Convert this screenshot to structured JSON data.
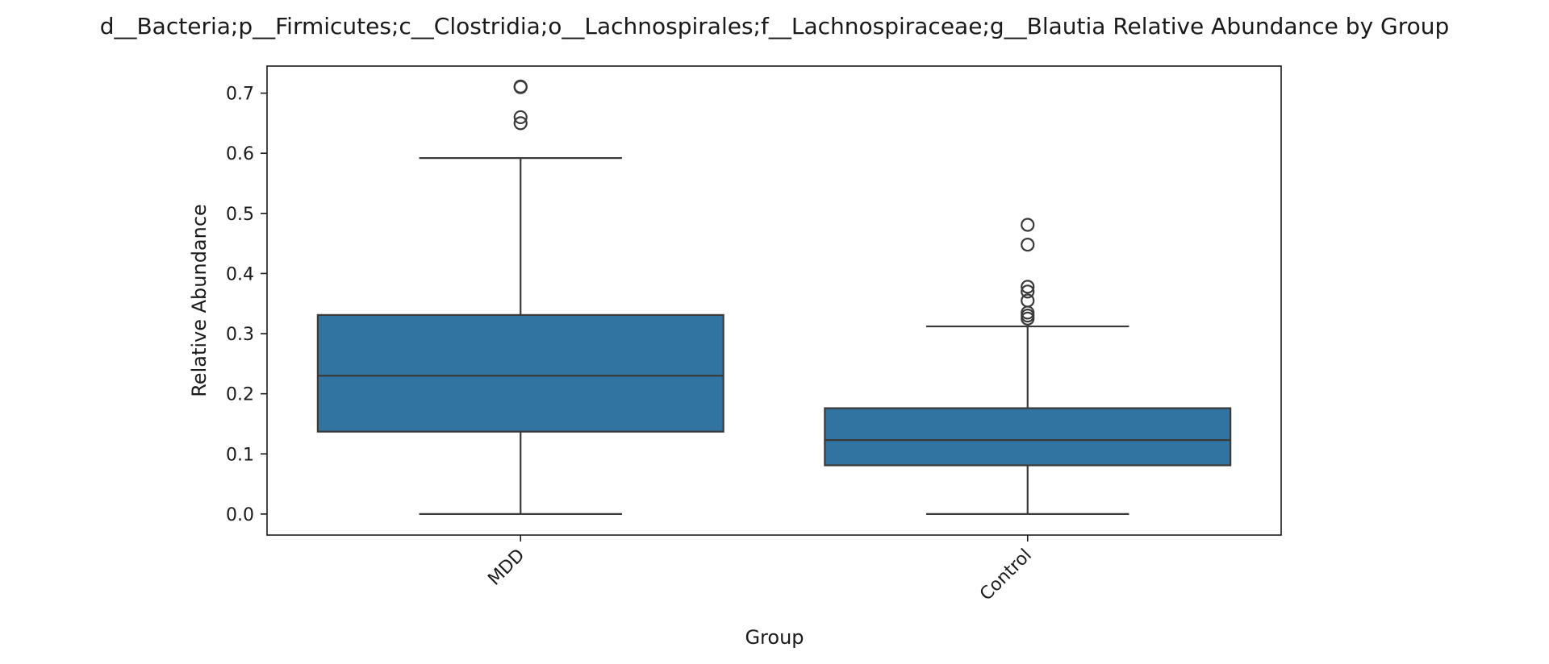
{
  "chart_data": {
    "type": "box",
    "title": "d__Bacteria;p__Firmicutes;c__Clostridia;o__Lachnospirales;f__Lachnospiraceae;g__Blautia Relative Abundance by Group",
    "xlabel": "Group",
    "ylabel": "Relative Abundance",
    "ylim": [
      -0.035,
      0.745
    ],
    "yticks": [
      0.0,
      0.1,
      0.2,
      0.3,
      0.4,
      0.5,
      0.6,
      0.7
    ],
    "ytick_labels": [
      "0.0",
      "0.1",
      "0.2",
      "0.3",
      "0.4",
      "0.5",
      "0.6",
      "0.7"
    ],
    "categories": [
      "MDD",
      "Control"
    ],
    "x_tick_rotation_deg": -45,
    "grid": false,
    "box_color": "#3274a1",
    "line_color": "#3a3a3a",
    "boxes": [
      {
        "category": "MDD",
        "whisker_low": 0.0,
        "q1": 0.137,
        "median": 0.23,
        "q3": 0.331,
        "whisker_high": 0.592,
        "outliers": [
          0.65,
          0.66,
          0.71,
          0.711
        ]
      },
      {
        "category": "Control",
        "whisker_low": 0.0,
        "q1": 0.081,
        "median": 0.123,
        "q3": 0.176,
        "whisker_high": 0.312,
        "outliers": [
          0.325,
          0.33,
          0.335,
          0.355,
          0.37,
          0.378,
          0.448,
          0.481
        ]
      }
    ]
  }
}
